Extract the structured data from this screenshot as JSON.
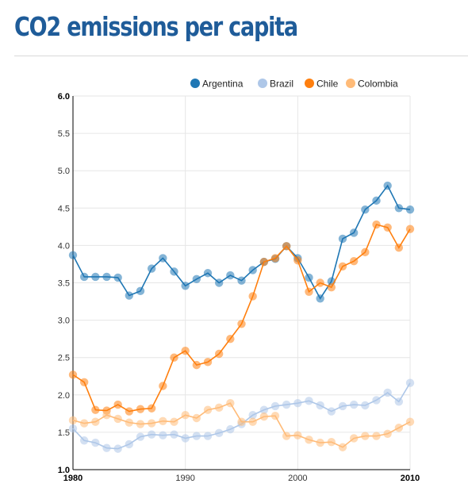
{
  "title": "CO2 emissions per capita",
  "chart_data": {
    "type": "line",
    "title": "CO2 emissions per capita",
    "xlabel": "",
    "ylabel": "",
    "xlim": [
      1980,
      2010
    ],
    "ylim": [
      1.0,
      6.0
    ],
    "y_ticks": [
      "1.0",
      "1.5",
      "2.0",
      "2.5",
      "3.0",
      "3.5",
      "4.0",
      "4.5",
      "5.0",
      "5.5",
      "6.0"
    ],
    "x_ticks": [
      "1980",
      "1990",
      "2000",
      "2010"
    ],
    "grid": true,
    "legend_position": "top-right",
    "x": [
      1980,
      1981,
      1982,
      1983,
      1984,
      1985,
      1986,
      1987,
      1988,
      1989,
      1990,
      1991,
      1992,
      1993,
      1994,
      1995,
      1996,
      1997,
      1998,
      1999,
      2000,
      2001,
      2002,
      2003,
      2004,
      2005,
      2006,
      2007,
      2008,
      2009,
      2010
    ],
    "series": [
      {
        "name": "Argentina",
        "color": "#1f77b4",
        "values": [
          3.87,
          3.58,
          3.58,
          3.58,
          3.57,
          3.33,
          3.39,
          3.69,
          3.83,
          3.65,
          3.46,
          3.55,
          3.63,
          3.5,
          3.6,
          3.53,
          3.67,
          3.78,
          3.82,
          3.99,
          3.83,
          3.57,
          3.29,
          3.52,
          4.09,
          4.17,
          4.48,
          4.6,
          4.8,
          4.5,
          4.48
        ]
      },
      {
        "name": "Brazil",
        "color": "#aec7e8",
        "values": [
          1.55,
          1.39,
          1.36,
          1.29,
          1.28,
          1.34,
          1.44,
          1.47,
          1.46,
          1.47,
          1.42,
          1.45,
          1.45,
          1.49,
          1.54,
          1.61,
          1.73,
          1.8,
          1.85,
          1.87,
          1.89,
          1.92,
          1.86,
          1.78,
          1.85,
          1.87,
          1.86,
          1.93,
          2.03,
          1.91,
          2.16
        ]
      },
      {
        "name": "Chile",
        "color": "#ff7f0e",
        "values": [
          2.27,
          2.17,
          1.8,
          1.79,
          1.87,
          1.78,
          1.81,
          1.82,
          2.12,
          2.5,
          2.59,
          2.4,
          2.44,
          2.55,
          2.75,
          2.95,
          3.32,
          3.78,
          3.83,
          3.99,
          3.8,
          3.38,
          3.5,
          3.44,
          3.72,
          3.79,
          3.91,
          4.28,
          4.24,
          3.97,
          4.22
        ]
      },
      {
        "name": "Colombia",
        "color": "#ffbb78",
        "values": [
          1.66,
          1.62,
          1.64,
          1.73,
          1.68,
          1.63,
          1.61,
          1.62,
          1.65,
          1.64,
          1.73,
          1.69,
          1.8,
          1.83,
          1.89,
          1.64,
          1.64,
          1.71,
          1.72,
          1.45,
          1.46,
          1.4,
          1.36,
          1.37,
          1.3,
          1.42,
          1.45,
          1.45,
          1.48,
          1.56,
          1.64
        ]
      }
    ]
  }
}
